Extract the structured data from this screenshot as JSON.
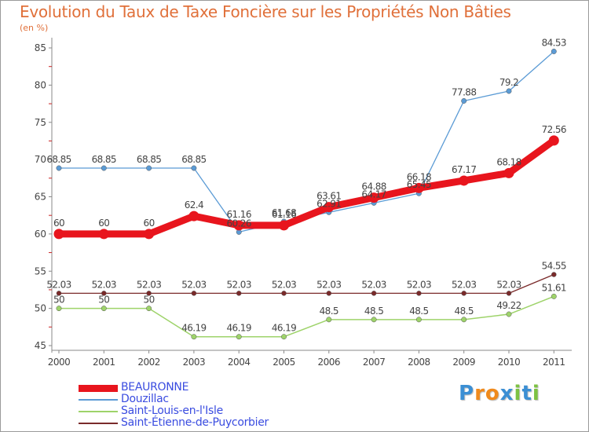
{
  "title": "Evolution du Taux de Taxe Foncière sur les Propriétés Non Bâties",
  "unit_label": "(en %)",
  "logo": {
    "text": "Proxiti",
    "letters": [
      "P",
      "r",
      "o",
      "x",
      "i",
      "t",
      "i"
    ],
    "colors": [
      "#3b8fd4",
      "#f08a1c",
      "#f08a1c",
      "#3b8fd4",
      "#7dc242",
      "#3b8fd4",
      "#7dc242"
    ]
  },
  "chart_data": {
    "type": "line",
    "title": "Evolution du Taux de Taxe Foncière sur les Propriétés Non Bâties",
    "ylabel": "(en %)",
    "xlabel": "",
    "ylim": [
      45,
      85
    ],
    "yticks": [
      45,
      50,
      55,
      60,
      65,
      70,
      75,
      80,
      85
    ],
    "categories": [
      "2000",
      "2001",
      "2002",
      "2003",
      "2004",
      "2005",
      "2006",
      "2007",
      "2008",
      "2009",
      "2010",
      "2011"
    ],
    "series": [
      {
        "name": "BEAURONNE",
        "color": "#e8151d",
        "values": [
          60,
          60,
          60,
          62.4,
          61.16,
          61.16,
          63.61,
          64.88,
          66.18,
          67.17,
          68.18,
          72.56
        ],
        "labels": [
          "60",
          "60",
          "60",
          "62.4",
          "61.16",
          "61.16",
          "63.61",
          "64.88",
          "66.18",
          "67.17",
          "68.18",
          "72.56"
        ]
      },
      {
        "name": "Douzillac",
        "color": "#5b9bd5",
        "values": [
          68.85,
          68.85,
          68.85,
          68.85,
          60.26,
          61.68,
          62.91,
          64.17,
          65.45,
          77.88,
          79.2,
          84.53
        ],
        "labels": [
          "68.85",
          "68.85",
          "68.85",
          "68.85",
          "60.26",
          "61.68",
          "62.91",
          "64.17",
          "65.45",
          "77.88",
          "79.2",
          "84.53"
        ]
      },
      {
        "name": "Saint-Louis-en-l'Isle",
        "color": "#9ed36a",
        "values": [
          50,
          50,
          50,
          46.19,
          46.19,
          46.19,
          48.5,
          48.5,
          48.5,
          48.5,
          49.22,
          51.61
        ],
        "labels": [
          "50",
          "50",
          "50",
          "46.19",
          "46.19",
          "46.19",
          "48.5",
          "48.5",
          "48.5",
          "48.5",
          "49.22",
          "51.61"
        ]
      },
      {
        "name": "Saint-Étienne-de-Puycorbier",
        "color": "#7a2a2a",
        "values": [
          52.03,
          52.03,
          52.03,
          52.03,
          52.03,
          52.03,
          52.03,
          52.03,
          52.03,
          52.03,
          52.03,
          54.55
        ],
        "labels": [
          "52.03",
          "52.03",
          "52.03",
          "52.03",
          "52.03",
          "52.03",
          "52.03",
          "52.03",
          "52.03",
          "52.03",
          "52.03",
          "54.55"
        ]
      }
    ]
  }
}
